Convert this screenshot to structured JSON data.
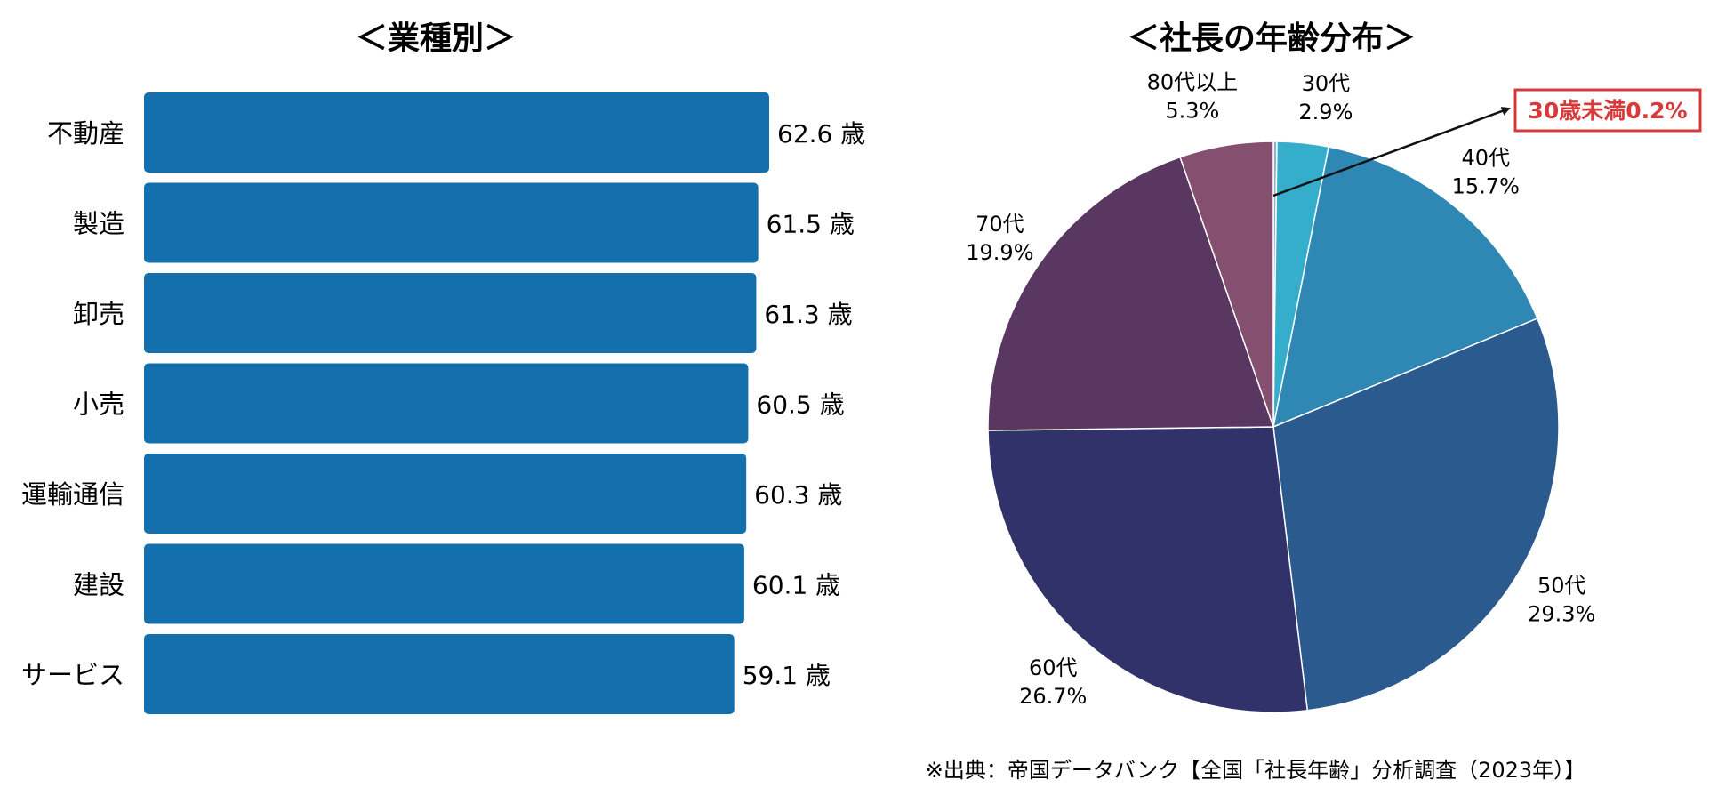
{
  "chart_data": [
    {
      "type": "bar",
      "orientation": "horizontal",
      "title": "＜業種別＞",
      "categories": [
        "不動産",
        "製造",
        "卸売",
        "小売",
        "運輸通信",
        "建設",
        "サービス"
      ],
      "values": [
        62.6,
        61.5,
        61.3,
        60.5,
        60.3,
        60.1,
        59.1
      ],
      "value_labels": [
        "62.6 歳",
        "61.5 歳",
        "61.3 歳",
        "60.5 歳",
        "60.3 歳",
        "60.1 歳",
        "59.1 歳"
      ],
      "xlim": [
        0,
        62.6
      ],
      "grid": false,
      "legend": "none",
      "colors": {
        "bar": "#146fad"
      }
    },
    {
      "type": "pie",
      "title": "＜社長の年齢分布＞",
      "slices": [
        {
          "name": "30歳未満",
          "value": 0.2,
          "label": "",
          "color": "#8fb3c8"
        },
        {
          "name": "30代",
          "value": 2.9,
          "label": "2.9%",
          "color": "#35aecb"
        },
        {
          "name": "40代",
          "value": 15.7,
          "label": "15.7%",
          "color": "#2f88b4"
        },
        {
          "name": "50代",
          "value": 29.3,
          "label": "29.3%",
          "color": "#2b5a8f"
        },
        {
          "name": "60代",
          "value": 26.7,
          "label": "26.7%",
          "color": "#31326a"
        },
        {
          "name": "70代",
          "value": 19.9,
          "label": "19.9%",
          "color": "#5a3761"
        },
        {
          "name": "80代以上",
          "value": 5.3,
          "label": "5.3%",
          "color": "#85506f"
        }
      ],
      "callout": {
        "text": "30歳未満0.2%",
        "color": "#d8393a"
      },
      "legend": "none"
    }
  ],
  "source_note": "※出典：帝国データバンク【全国「社長年齢」分析調査（2023年）】"
}
